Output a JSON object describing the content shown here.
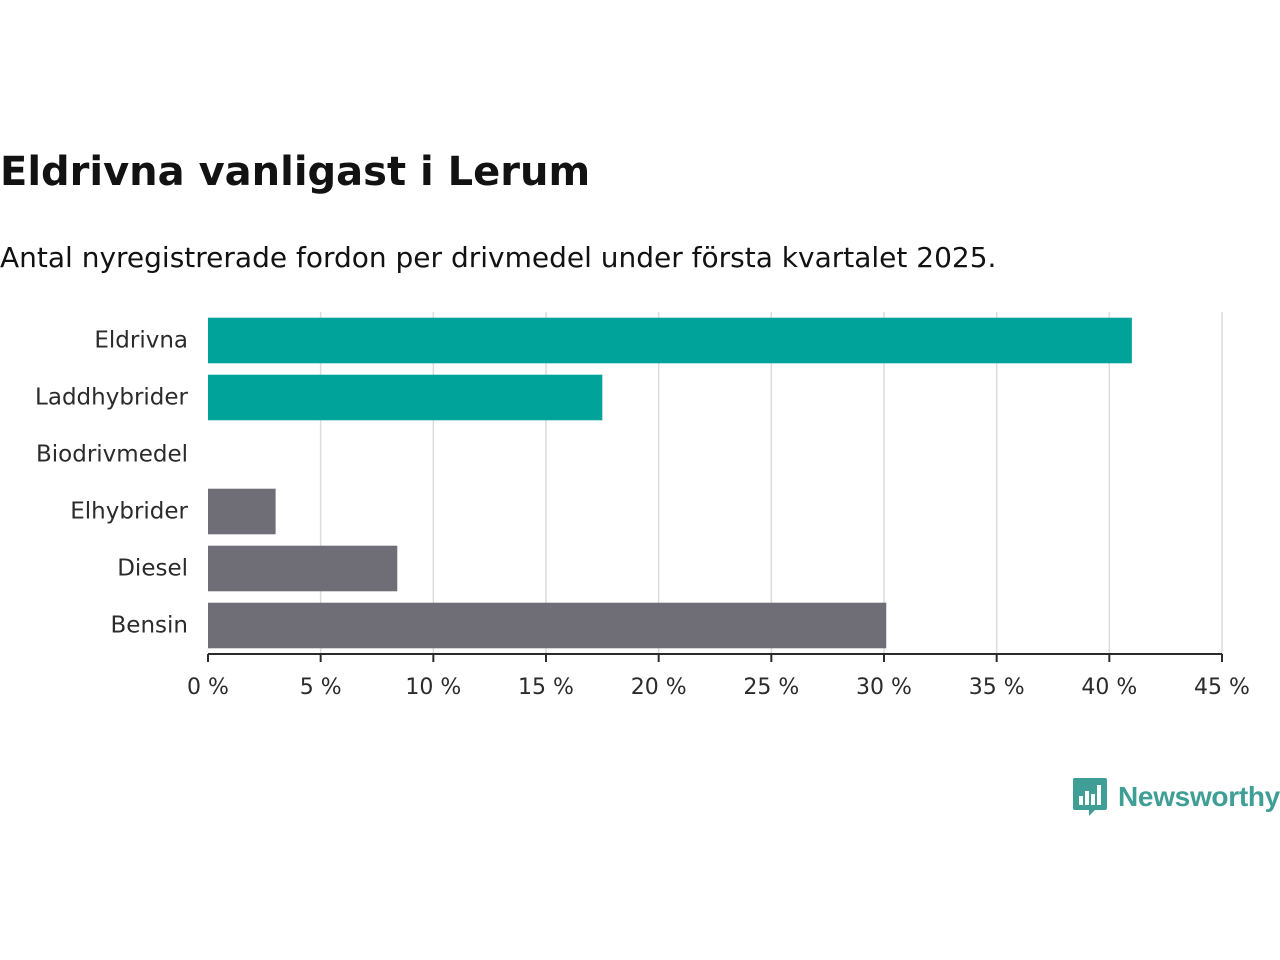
{
  "title": "Eldrivna vanligast i Lerum",
  "subtitle": "Antal nyregistrerade fordon per drivmedel under första kvartalet 2025.",
  "brand": {
    "name": "Newsworthy",
    "color": "#3f9e96",
    "icon": "bar-chart-speech-bubble-icon"
  },
  "chart_data": {
    "type": "bar",
    "orientation": "horizontal",
    "categories": [
      "Eldrivna",
      "Laddhybrider",
      "Biodrivmedel",
      "Elhybrider",
      "Diesel",
      "Bensin"
    ],
    "values": [
      41.0,
      17.5,
      0,
      3.0,
      8.4,
      30.1
    ],
    "colors": [
      "#00a39a",
      "#00a39a",
      "#00a39a",
      "#6f6e76",
      "#6f6e76",
      "#6f6e76"
    ],
    "xlim": [
      0,
      45
    ],
    "xticks": [
      0,
      5,
      10,
      15,
      20,
      25,
      30,
      35,
      40,
      45
    ],
    "tick_labels": [
      "0 %",
      "5 %",
      "10 %",
      "15 %",
      "20 %",
      "25 %",
      "30 %",
      "35 %",
      "40 %",
      "45 %"
    ],
    "xlabel": "",
    "ylabel": "",
    "grid": true,
    "legend": "none"
  }
}
